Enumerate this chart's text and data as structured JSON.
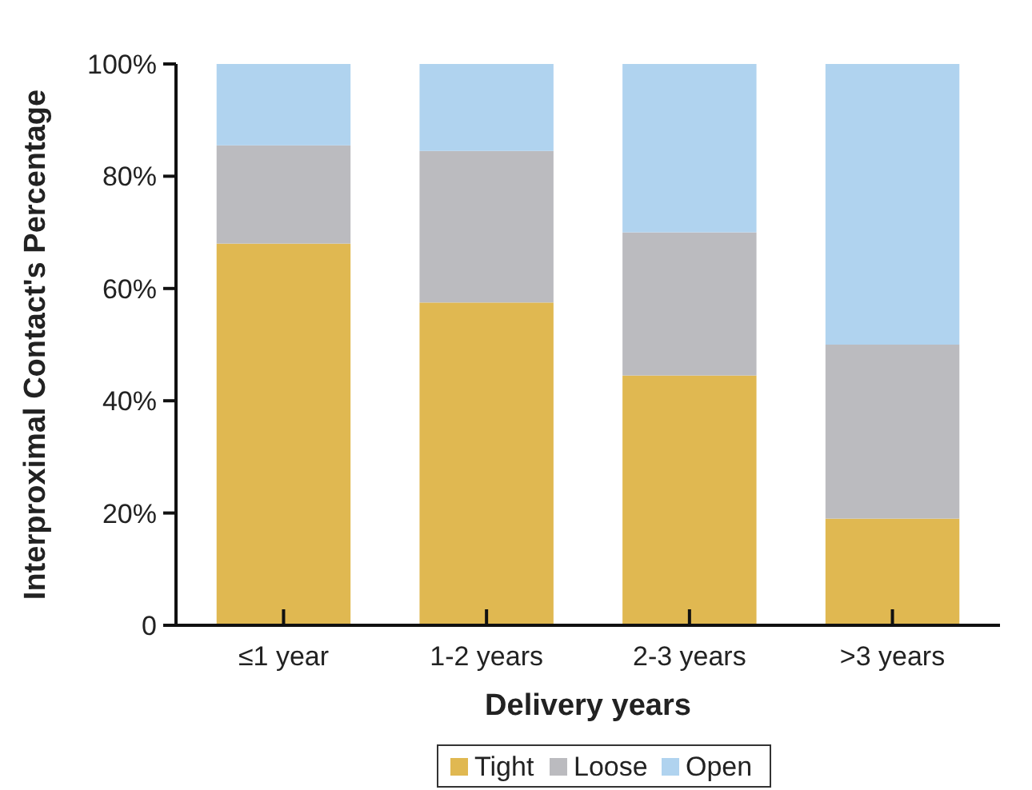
{
  "chart_data": {
    "type": "bar",
    "stacked": true,
    "xlabel": "Delivery years",
    "ylabel": "Interproximal Contact's Percentage",
    "categories": [
      "≤1 year",
      "1-2 years",
      "2-3 years",
      ">3 years"
    ],
    "series": [
      {
        "name": "Tight",
        "color": "#e0b851",
        "values": [
          68,
          57.5,
          44.5,
          19
        ]
      },
      {
        "name": "Loose",
        "color": "#bbbbbf",
        "values": [
          17.5,
          27,
          25.5,
          31
        ]
      },
      {
        "name": "Open",
        "color": "#b0d3ef",
        "values": [
          14.5,
          15.5,
          30,
          50
        ]
      }
    ],
    "ylim": [
      0,
      100
    ],
    "yticks": [
      {
        "value": 0,
        "label": "0"
      },
      {
        "value": 20,
        "label": "20%"
      },
      {
        "value": 40,
        "label": "40%"
      },
      {
        "value": 60,
        "label": "60%"
      },
      {
        "value": 80,
        "label": "80%"
      },
      {
        "value": 100,
        "label": "100%"
      }
    ],
    "grid": false,
    "legend": "bottom"
  }
}
